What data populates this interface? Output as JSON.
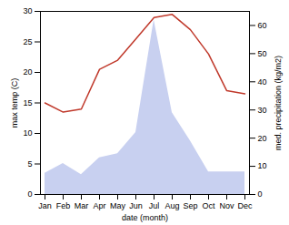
{
  "chart_data": {
    "type": "line",
    "xlabel": "date (month)",
    "ylabel": "max temp (C)",
    "y2label": "med. precipitation (kg/m2)",
    "categories": [
      "Jan",
      "Feb",
      "Mar",
      "Apr",
      "May",
      "Jun",
      "Jul",
      "Aug",
      "Sep",
      "Oct",
      "Nov",
      "Dec"
    ],
    "series": [
      {
        "type": "area",
        "axis": "y2",
        "color": "#c8d0f0",
        "values": [
          7.5,
          11.0,
          7.0,
          13.0,
          14.5,
          22.0,
          62.0,
          29.0,
          19.0,
          8.0,
          8.0,
          8.0
        ]
      },
      {
        "type": "line",
        "axis": "y",
        "color": "#c0392b",
        "values": [
          15.0,
          13.5,
          14.0,
          20.5,
          22.0,
          25.5,
          29.0,
          29.5,
          27.0,
          23.0,
          17.0,
          16.5
        ]
      }
    ],
    "ylim": [
      0,
      30
    ],
    "yticks": [
      0,
      5,
      10,
      15,
      20,
      25,
      30
    ],
    "y2lim": [
      0,
      65
    ],
    "y2ticks": [
      0,
      10,
      20,
      30,
      40,
      50,
      60
    ],
    "grid": false
  }
}
